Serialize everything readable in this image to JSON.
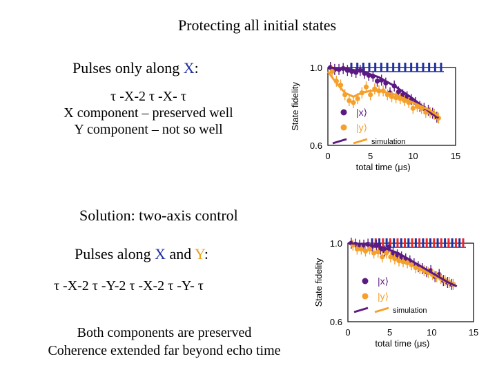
{
  "title": "Protecting all initial states",
  "panel1": {
    "heading_prefix": "Pulses only along ",
    "heading_axis": "X",
    "heading_suffix": ":",
    "sequence": "τ -X-2 τ -X- τ",
    "note_x": "X component – preserved well",
    "note_y": "Y component – not so well"
  },
  "solution": "Solution: two-axis control",
  "panel2": {
    "heading_prefix": "Pulses along ",
    "heading_x": "X",
    "heading_and": " and ",
    "heading_y": "Y",
    "heading_suffix": ":",
    "sequence": "τ -X-2 τ -Y-2 τ -X-2 τ -Y- τ"
  },
  "conclusion": {
    "line1": "Both components are preserved",
    "line2": "Coherence extended far beyond echo time"
  },
  "colors": {
    "x_state": "#5b1a82",
    "y_state": "#f5a02a",
    "x_pulse": "#1f2fa0",
    "y_pulse": "#e8262a"
  },
  "chart_data": [
    {
      "type": "scatter",
      "title": "Pulses only along X",
      "xlabel": "total time (μs)",
      "ylabel": "State fidelity",
      "xlim": [
        0,
        15
      ],
      "ylim": [
        0.6,
        1.0
      ],
      "xticks": [
        "0",
        "5",
        "10",
        "15"
      ],
      "yticks": [
        "0.6",
        "1.0"
      ],
      "legend": [
        "|x⟩",
        "|y⟩"
      ],
      "legend_line": "simulation",
      "pulse_sequence": [
        "X",
        "X",
        "X",
        "X",
        "X",
        "X",
        "X",
        "X",
        "X",
        "X",
        "X",
        "X",
        "X",
        "X",
        "X",
        "X"
      ],
      "series": [
        {
          "name": "|x⟩",
          "x": [
            0.3,
            0.8,
            1.3,
            1.8,
            2.3,
            2.8,
            3.3,
            3.8,
            4.3,
            4.8,
            5.3,
            5.8,
            6.3,
            6.8,
            7.3,
            7.8,
            8.3,
            8.8,
            9.3,
            9.8,
            10.3,
            10.8,
            11.3,
            11.8,
            12.3,
            12.8
          ],
          "y": [
            1.0,
            0.99,
            0.99,
            0.995,
            0.985,
            0.98,
            0.975,
            0.985,
            0.97,
            0.96,
            0.955,
            0.93,
            0.935,
            0.92,
            0.87,
            0.905,
            0.875,
            0.86,
            0.85,
            0.835,
            0.82,
            0.8,
            0.79,
            0.78,
            0.765,
            0.745
          ]
        },
        {
          "name": "|y⟩",
          "x": [
            0.5,
            1.0,
            1.5,
            2.0,
            2.5,
            3.0,
            3.5,
            4.0,
            4.5,
            5.0,
            5.5,
            6.0,
            6.5,
            7.0,
            7.5,
            8.0,
            8.5,
            9.0,
            9.5,
            10.0,
            10.5,
            11.0,
            11.5,
            12.0,
            12.5,
            13.0
          ],
          "y": [
            0.98,
            0.93,
            0.91,
            0.86,
            0.83,
            0.82,
            0.84,
            0.87,
            0.9,
            0.86,
            0.89,
            0.88,
            0.88,
            0.86,
            0.85,
            0.845,
            0.84,
            0.83,
            0.82,
            0.79,
            0.8,
            0.79,
            0.77,
            0.77,
            0.76,
            0.74
          ]
        },
        {
          "name": "simulation |x⟩",
          "x": [
            0,
            2,
            4,
            6,
            8,
            10,
            12,
            13
          ],
          "y": [
            1.0,
            0.995,
            0.98,
            0.95,
            0.9,
            0.84,
            0.77,
            0.74
          ]
        },
        {
          "name": "simulation |y⟩",
          "x": [
            0,
            1,
            2,
            3,
            4,
            5,
            6,
            8,
            10,
            12,
            13
          ],
          "y": [
            0.98,
            0.92,
            0.87,
            0.85,
            0.87,
            0.88,
            0.88,
            0.86,
            0.82,
            0.78,
            0.75
          ]
        }
      ]
    },
    {
      "type": "scatter",
      "title": "Pulses along X and Y",
      "xlabel": "total time (μs)",
      "ylabel": "State fidelity",
      "xlim": [
        0,
        15
      ],
      "ylim": [
        0.6,
        1.0
      ],
      "xticks": [
        "0",
        "5",
        "10",
        "15"
      ],
      "yticks": [
        "0.6",
        "1.0"
      ],
      "legend": [
        "|x⟩",
        "|y⟩"
      ],
      "legend_line": "simulation",
      "pulse_sequence": [
        "X",
        "Y",
        "X",
        "Y",
        "X",
        "Y",
        "X",
        "Y",
        "X",
        "Y",
        "X",
        "Y",
        "X",
        "Y",
        "X",
        "Y",
        "X",
        "Y",
        "X",
        "Y",
        "X",
        "Y",
        "X",
        "Y",
        "X",
        "Y"
      ],
      "series": [
        {
          "name": "|x⟩",
          "x": [
            0.4,
            0.9,
            1.4,
            1.9,
            2.4,
            2.9,
            3.4,
            3.9,
            4.4,
            4.9,
            5.4,
            5.9,
            6.4,
            6.9,
            7.4,
            7.9,
            8.4,
            8.9,
            9.4,
            9.9,
            10.4,
            10.9,
            11.4,
            11.9,
            12.4
          ],
          "y": [
            1.0,
            0.995,
            0.99,
            0.99,
            0.995,
            0.985,
            0.99,
            0.97,
            0.96,
            0.98,
            0.95,
            0.94,
            0.93,
            0.92,
            0.91,
            0.895,
            0.88,
            0.87,
            0.855,
            0.86,
            0.83,
            0.84,
            0.81,
            0.8,
            0.79
          ]
        },
        {
          "name": "|y⟩",
          "x": [
            0.6,
            1.1,
            1.6,
            2.1,
            2.6,
            3.1,
            3.6,
            4.1,
            4.6,
            5.1,
            5.6,
            6.1,
            6.6,
            7.1,
            7.6,
            8.1,
            8.6,
            9.1,
            9.6,
            10.1,
            10.6,
            11.1,
            11.6,
            12.1,
            12.6
          ],
          "y": [
            0.99,
            0.97,
            0.97,
            0.96,
            0.97,
            0.95,
            0.955,
            0.93,
            0.95,
            0.93,
            0.92,
            0.91,
            0.905,
            0.9,
            0.89,
            0.875,
            0.87,
            0.86,
            0.85,
            0.84,
            0.83,
            0.82,
            0.81,
            0.8,
            0.79
          ]
        },
        {
          "name": "simulation",
          "x": [
            0,
            2,
            4,
            6,
            8,
            10,
            12,
            13
          ],
          "y": [
            1.0,
            0.995,
            0.98,
            0.95,
            0.9,
            0.85,
            0.8,
            0.78
          ]
        }
      ]
    }
  ]
}
